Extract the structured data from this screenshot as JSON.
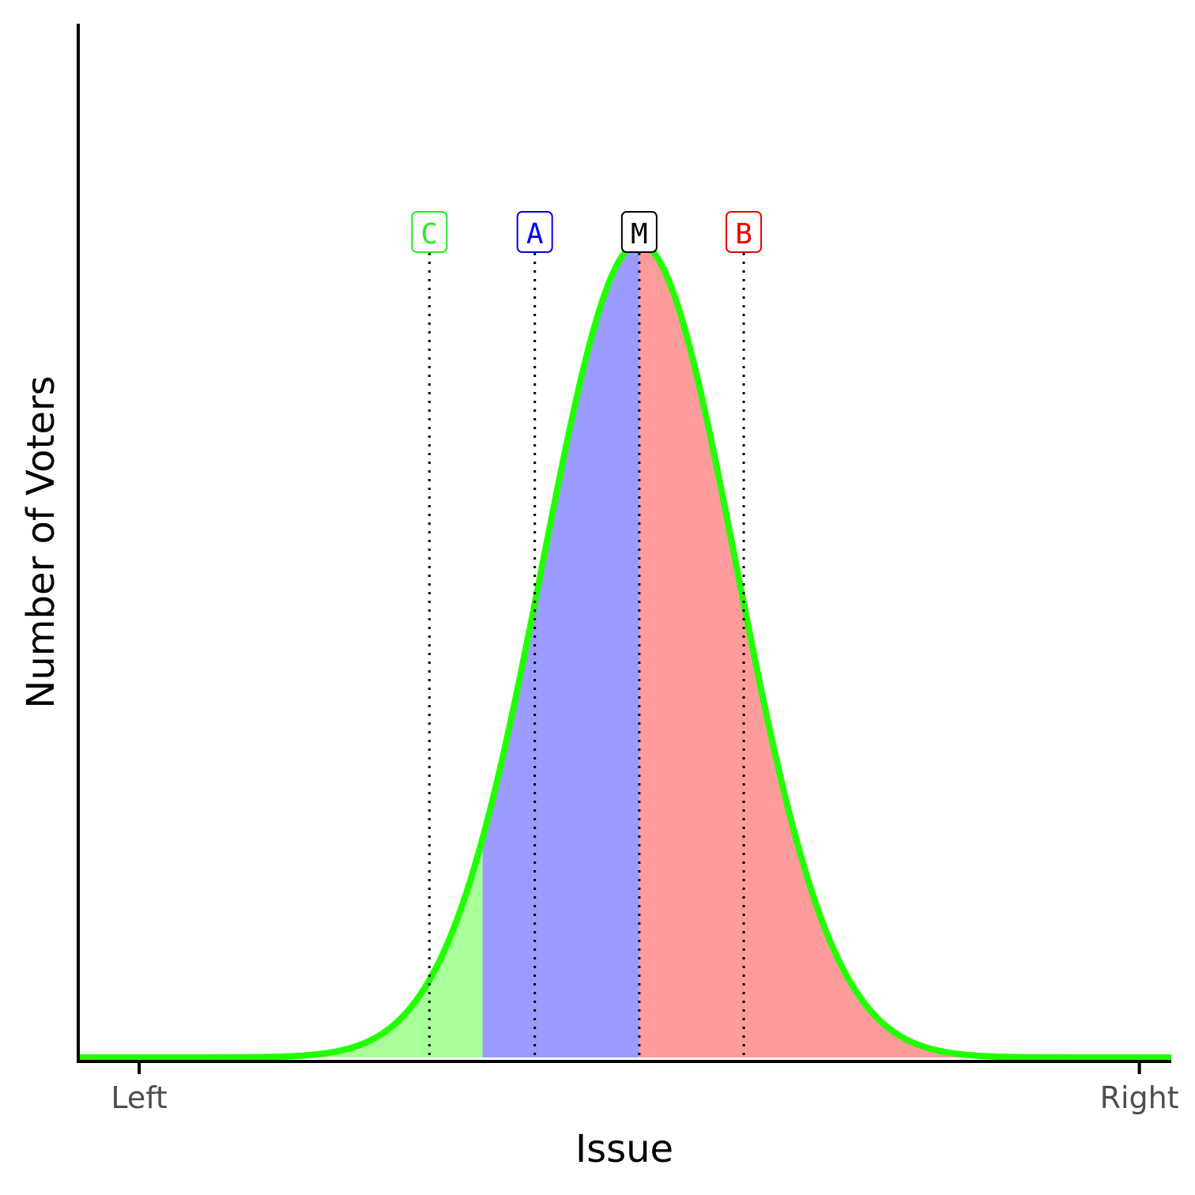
{
  "chart_data": {
    "type": "area",
    "title": "",
    "xlabel": "Issue",
    "ylabel": "Number of Voters",
    "xlim": [
      -3.3,
      8.0
    ],
    "ylim": [
      0,
      1.0
    ],
    "x_ticks": [
      {
        "value": -2.67,
        "label": "Left"
      },
      {
        "value": 7.67,
        "label": "Right"
      }
    ],
    "grid": false,
    "legend": "none",
    "distribution": {
      "shape": "normal",
      "mean": 2.5,
      "sd": 1.0
    },
    "curve_color": "#22ff00",
    "regions": [
      {
        "party": "C",
        "from": -3.3,
        "to": 0.88,
        "color": "#a8ff99"
      },
      {
        "party": "A",
        "from": 0.88,
        "to": 2.5,
        "color": "#9b9bff"
      },
      {
        "party": "B",
        "from": 2.5,
        "to": 8.0,
        "color": "#ff9b9b"
      }
    ],
    "markers": [
      {
        "label": "C",
        "x": 0.33,
        "color": "#22ee22",
        "line": "dotted"
      },
      {
        "label": "A",
        "x": 1.42,
        "color": "#0000ee",
        "line": "dotted"
      },
      {
        "label": "M",
        "x": 2.5,
        "color": "#000000",
        "line": "dotted"
      },
      {
        "label": "B",
        "x": 3.58,
        "color": "#ee0000",
        "line": "dotted"
      }
    ]
  }
}
